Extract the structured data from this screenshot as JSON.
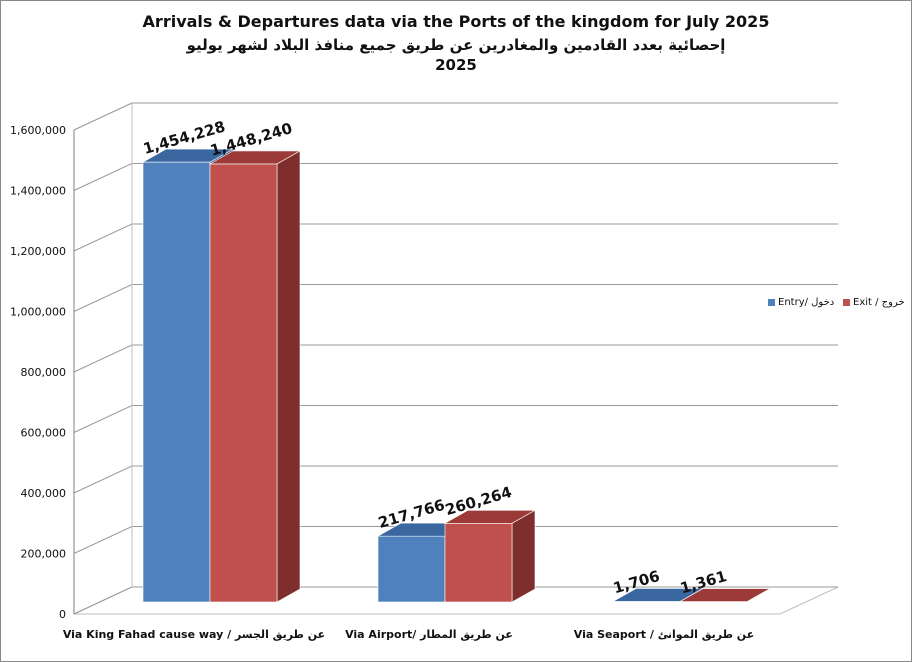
{
  "chart_data": {
    "type": "bar",
    "title": "Arrivals & Departures data via the Ports of the kingdom for July 2025",
    "subtitle_ar": "إحصائية بعدد القادمين والمغادرين عن طريق جميع منافذ البلاد لشهر يوليو",
    "subtitle_year": "2025",
    "categories": [
      "Via King Fahad cause way / عن طريق الجسر",
      "Via Airport/ عن طريق المطار",
      "Via Seaport / عن طريق الموانئ"
    ],
    "series": [
      {
        "name": "Entry/ دخول",
        "values": [
          1454228,
          217766,
          1706
        ],
        "color": "#4f81bd",
        "side_color": "#385d8a",
        "top_color": "#3b67a0"
      },
      {
        "name": "Exit / خروج",
        "values": [
          1448240,
          260264,
          1361
        ],
        "color": "#c0504d",
        "side_color": "#7e2f2d",
        "top_color": "#9b3a37"
      }
    ],
    "data_labels": [
      [
        "1,454,228",
        "217,766",
        "1,706"
      ],
      [
        "1,448,240",
        "260,264",
        "1,361"
      ]
    ],
    "y_ticks": [
      "0",
      "200,000",
      "400,000",
      "600,000",
      "800,000",
      "1,000,000",
      "1,200,000",
      "1,400,000",
      "1,600,000"
    ],
    "ylim": [
      0,
      1600000
    ],
    "legend_position": "right",
    "grid": true
  }
}
